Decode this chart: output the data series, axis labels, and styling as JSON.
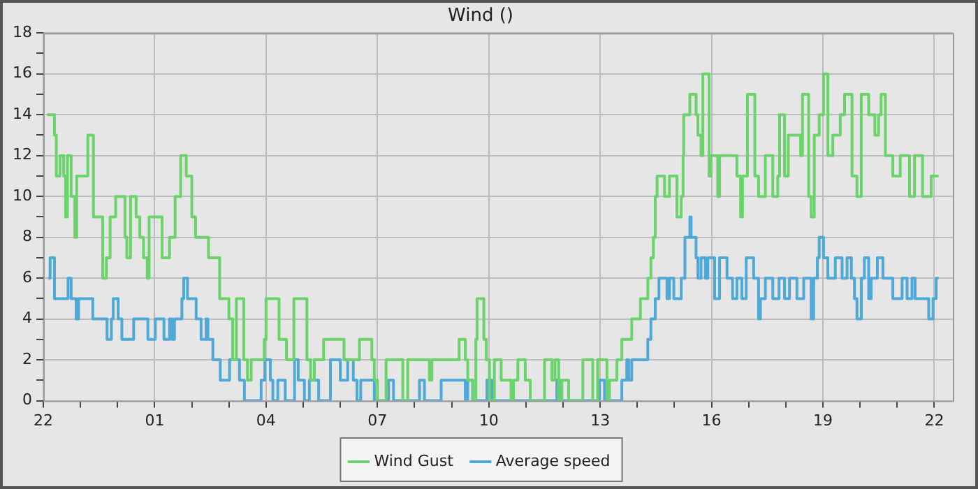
{
  "chart_data": {
    "type": "step",
    "title": "Wind ()",
    "xlim": [
      "--01-01T22:00",
      "--01-02T22:30"
    ],
    "ylim": [
      0,
      18
    ],
    "xticks": [
      {
        "value": "--01-01T22:00",
        "label": "22"
      },
      {
        "value": "--01-01T23:00",
        "label": null
      },
      {
        "value": "--01-02T00:00",
        "label": null
      },
      {
        "value": "--01-02T01:00",
        "label": "01"
      },
      {
        "value": "--01-02T02:00",
        "label": null
      },
      {
        "value": "--01-02T03:00",
        "label": null
      },
      {
        "value": "--01-02T04:00",
        "label": "04"
      },
      {
        "value": "--01-02T05:00",
        "label": null
      },
      {
        "value": "--01-02T06:00",
        "label": null
      },
      {
        "value": "--01-02T07:00",
        "label": "07"
      },
      {
        "value": "--01-02T08:00",
        "label": null
      },
      {
        "value": "--01-02T09:00",
        "label": null
      },
      {
        "value": "--01-02T10:00",
        "label": "10"
      },
      {
        "value": "--01-02T11:00",
        "label": null
      },
      {
        "value": "--01-02T12:00",
        "label": null
      },
      {
        "value": "--01-02T13:00",
        "label": "13"
      },
      {
        "value": "--01-02T14:00",
        "label": null
      },
      {
        "value": "--01-02T15:00",
        "label": null
      },
      {
        "value": "--01-02T16:00",
        "label": "16"
      },
      {
        "value": "--01-02T17:00",
        "label": null
      },
      {
        "value": "--01-02T18:00",
        "label": null
      },
      {
        "value": "--01-02T19:00",
        "label": "19"
      },
      {
        "value": "--01-02T20:00",
        "label": null
      },
      {
        "value": "--01-02T21:00",
        "label": null
      },
      {
        "value": "--01-02T22:00",
        "label": "22"
      }
    ],
    "yticks": [
      0,
      {
        "value": 1,
        "label": null
      },
      2,
      {
        "value": 3,
        "label": null
      },
      4,
      {
        "value": 5,
        "label": null
      },
      6,
      {
        "value": 7,
        "label": null
      },
      8,
      {
        "value": 9,
        "label": null
      },
      10,
      {
        "value": 11,
        "label": null
      },
      12,
      {
        "value": 13,
        "label": null
      },
      14,
      {
        "value": 15,
        "label": null
      },
      16,
      {
        "value": 17,
        "label": null
      },
      18
    ],
    "grid": true,
    "legend": "bottom",
    "series": [
      {
        "name": "Wind Gust",
        "color": "#6ad46a",
        "x": [
          "--01-01T22:06",
          "--01-01T22:18",
          "--01-01T22:21",
          "--01-01T22:27",
          "--01-01T22:33",
          "--01-01T22:36",
          "--01-01T22:39",
          "--01-01T22:45",
          "--01-01T22:51",
          "--01-01T22:54",
          "--01-01T23:12",
          "--01-01T23:21",
          "--01-01T23:36",
          "--01-01T23:42",
          "--01-01T23:48",
          "--01-01T23:57",
          "--01-02T00:12",
          "--01-02T00:15",
          "--01-02T00:21",
          "--01-02T00:30",
          "--01-02T00:36",
          "--01-02T00:42",
          "--01-02T00:48",
          "--01-02T00:51",
          "--01-02T01:00",
          "--01-02T01:12",
          "--01-02T01:24",
          "--01-02T01:33",
          "--01-02T01:42",
          "--01-02T01:51",
          "--01-02T02:00",
          "--01-02T02:06",
          "--01-02T02:27",
          "--01-02T02:45",
          "--01-02T03:00",
          "--01-02T03:06",
          "--01-02T03:12",
          "--01-02T03:24",
          "--01-02T03:30",
          "--01-02T03:36",
          "--01-02T03:57",
          "--01-02T04:00",
          "--01-02T04:21",
          "--01-02T04:33",
          "--01-02T04:45",
          "--01-02T05:06",
          "--01-02T05:12",
          "--01-02T05:18",
          "--01-02T05:33",
          "--01-02T06:06",
          "--01-02T06:31",
          "--01-02T06:51",
          "--01-02T06:55",
          "--01-02T07:00",
          "--01-02T07:14",
          "--01-02T07:41",
          "--01-02T07:49",
          "--01-02T08:24",
          "--01-02T08:28",
          "--01-02T09:12",
          "--01-02T09:22",
          "--01-02T09:26",
          "--01-02T09:34",
          "--01-02T09:39",
          "--01-02T09:41",
          "--01-02T09:52",
          "--01-02T09:56",
          "--01-02T10:01",
          "--01-02T10:09",
          "--01-02T10:20",
          "--01-02T10:36",
          "--01-02T10:40",
          "--01-02T10:47",
          "--01-02T10:59",
          "--01-02T11:07",
          "--01-02T11:30",
          "--01-02T11:42",
          "--01-02T11:47",
          "--01-02T11:53",
          "--01-02T11:58",
          "--01-02T12:09",
          "--01-02T12:32",
          "--01-02T12:48",
          "--01-02T12:56",
          "--01-02T13:11",
          "--01-02T13:15",
          "--01-02T13:27",
          "--01-02T13:35",
          "--01-02T13:51",
          "--01-02T14:05",
          "--01-02T14:17",
          "--01-02T14:22",
          "--01-02T14:26",
          "--01-02T14:29",
          "--01-02T14:32",
          "--01-02T14:44",
          "--01-02T14:52",
          "--01-02T15:04",
          "--01-02T15:11",
          "--01-02T15:14",
          "--01-02T15:15",
          "--01-02T15:25",
          "--01-02T15:35",
          "--01-02T15:38",
          "--01-02T15:43",
          "--01-02T15:46",
          "--01-02T15:56",
          "--01-02T15:59",
          "--01-02T16:10",
          "--01-02T16:13",
          "--01-02T16:41",
          "--01-02T16:47",
          "--01-02T16:50",
          "--01-02T16:58",
          "--01-02T17:10",
          "--01-02T17:16",
          "--01-02T17:27",
          "--01-02T17:39",
          "--01-02T17:47",
          "--01-02T17:50",
          "--01-02T17:58",
          "--01-02T18:04",
          "--01-02T18:24",
          "--01-02T18:27",
          "--01-02T18:37",
          "--01-02T18:41",
          "--01-02T18:46",
          "--01-02T18:54",
          "--01-02T19:01",
          "--01-02T19:08",
          "--01-02T19:16",
          "--01-02T19:28",
          "--01-02T19:35",
          "--01-02T19:47",
          "--01-02T19:55",
          "--01-02T20:02",
          "--01-02T20:14",
          "--01-02T20:24",
          "--01-02T20:30",
          "--01-02T20:34",
          "--01-02T20:41",
          "--01-02T20:53",
          "--01-02T21:05",
          "--01-02T21:20",
          "--01-02T21:28",
          "--01-02T21:41",
          "--01-02T21:55",
          "--01-02T22:07"
        ],
        "values": [
          14,
          13,
          11,
          12,
          11,
          9,
          12,
          10,
          8,
          11,
          13,
          9,
          6,
          7,
          9,
          10,
          8,
          7,
          10,
          9,
          8,
          7,
          6,
          9,
          9,
          7,
          8,
          10,
          12,
          11,
          9,
          8,
          7,
          5,
          4,
          2,
          5,
          2,
          1,
          2,
          3,
          5,
          3,
          2,
          5,
          2,
          1,
          2,
          3,
          2,
          3,
          2,
          1,
          0,
          2,
          0,
          2,
          1,
          2,
          3,
          2,
          1,
          0,
          3,
          5,
          3,
          2,
          0,
          2,
          1,
          0,
          1,
          2,
          1,
          0,
          2,
          1,
          2,
          0,
          1,
          0,
          2,
          0,
          2,
          0,
          1,
          2,
          3,
          4,
          5,
          6,
          7,
          8,
          10,
          11,
          10,
          11,
          9,
          10,
          12,
          14,
          15,
          14,
          13,
          12,
          16,
          11,
          12,
          10,
          12,
          11,
          9,
          11,
          15,
          11,
          10,
          12,
          10,
          11,
          14,
          11,
          13,
          12,
          15,
          10,
          9,
          13,
          14,
          16,
          12,
          13,
          14,
          15,
          11,
          10,
          15,
          14,
          13,
          14,
          15,
          12,
          11,
          12,
          10,
          12,
          10,
          11,
          11
        ]
      },
      {
        "name": "Average speed",
        "color": "#4ea8d8",
        "x": [
          "--01-01T22:08",
          "--01-01T22:11",
          "--01-01T22:18",
          "--01-01T22:40",
          "--01-01T22:45",
          "--01-01T22:53",
          "--01-01T22:57",
          "--01-01T23:20",
          "--01-01T23:43",
          "--01-01T23:50",
          "--01-01T23:53",
          "--01-02T00:01",
          "--01-02T00:07",
          "--01-02T00:22",
          "--01-02T00:26",
          "--01-02T00:49",
          "--01-02T01:01",
          "--01-02T01:15",
          "--01-02T01:24",
          "--01-02T01:28",
          "--01-02T01:32",
          "--01-02T01:44",
          "--01-02T01:47",
          "--01-02T01:53",
          "--01-02T02:07",
          "--01-02T02:15",
          "--01-02T02:23",
          "--01-02T02:26",
          "--01-02T02:34",
          "--01-02T02:46",
          "--01-02T03:01",
          "--01-02T03:17",
          "--01-02T03:25",
          "--01-02T03:52",
          "--01-02T03:58",
          "--01-02T04:07",
          "--01-02T04:11",
          "--01-02T04:19",
          "--01-02T04:31",
          "--01-02T04:46",
          "--01-02T04:52",
          "--01-02T05:02",
          "--01-02T05:10",
          "--01-02T05:25",
          "--01-02T05:44",
          "--01-02T06:00",
          "--01-02T06:12",
          "--01-02T06:21",
          "--01-02T06:27",
          "--01-02T06:33",
          "--01-02T06:55",
          "--01-02T07:18",
          "--01-02T07:26",
          "--01-02T08:08",
          "--01-02T08:16",
          "--01-02T08:43",
          "--01-02T09:22",
          "--01-02T09:26",
          "--01-02T09:34",
          "--01-02T09:57",
          "--01-02T10:05",
          "--01-02T11:50",
          "--01-02T11:55",
          "--01-02T12:59",
          "--01-02T13:07",
          "--01-02T13:35",
          "--01-02T13:43",
          "--01-02T13:46",
          "--01-02T13:51",
          "--01-02T14:17",
          "--01-02T14:22",
          "--01-02T14:29",
          "--01-02T14:35",
          "--01-02T14:48",
          "--01-02T14:52",
          "--01-02T14:59",
          "--01-02T15:11",
          "--01-02T15:17",
          "--01-02T15:25",
          "--01-02T15:27",
          "--01-02T15:35",
          "--01-02T15:38",
          "--01-02T15:43",
          "--01-02T15:50",
          "--01-02T15:54",
          "--01-02T16:05",
          "--01-02T16:13",
          "--01-02T16:25",
          "--01-02T16:34",
          "--01-02T16:41",
          "--01-02T16:49",
          "--01-02T16:56",
          "--01-02T17:08",
          "--01-02T17:16",
          "--01-02T17:19",
          "--01-02T17:27",
          "--01-02T17:39",
          "--01-02T17:49",
          "--01-02T17:58",
          "--01-02T18:06",
          "--01-02T18:18",
          "--01-02T18:29",
          "--01-02T18:41",
          "--01-02T18:45",
          "--01-02T18:51",
          "--01-02T18:54",
          "--01-02T19:01",
          "--01-02T19:08",
          "--01-02T19:20",
          "--01-02T19:31",
          "--01-02T19:39",
          "--01-02T19:46",
          "--01-02T19:51",
          "--01-02T19:55",
          "--01-02T20:02",
          "--01-02T20:07",
          "--01-02T20:14",
          "--01-02T20:18",
          "--01-02T20:28",
          "--01-02T20:37",
          "--01-02T20:53",
          "--01-02T21:08",
          "--01-02T21:16",
          "--01-02T21:24",
          "--01-02T21:29",
          "--01-02T21:51",
          "--01-02T21:58",
          "--01-02T22:03",
          "--01-02T22:07"
        ],
        "values": [
          6,
          7,
          5,
          6,
          5,
          4,
          5,
          4,
          3,
          4,
          5,
          4,
          3,
          3,
          4,
          3,
          4,
          3,
          4,
          3,
          4,
          5,
          6,
          5,
          4,
          3,
          4,
          3,
          2,
          1,
          2,
          1,
          0,
          1,
          2,
          1,
          0,
          1,
          0,
          2,
          1,
          0,
          1,
          0,
          2,
          1,
          2,
          1,
          0,
          1,
          0,
          1,
          0,
          1,
          0,
          1,
          0,
          1,
          0,
          1,
          0,
          1,
          0,
          1,
          0,
          1,
          2,
          1,
          2,
          3,
          4,
          5,
          6,
          5,
          6,
          5,
          6,
          8,
          9,
          8,
          7,
          6,
          7,
          6,
          7,
          5,
          7,
          6,
          5,
          6,
          5,
          7,
          6,
          4,
          5,
          6,
          5,
          6,
          5,
          6,
          5,
          6,
          4,
          6,
          7,
          8,
          7,
          6,
          7,
          6,
          7,
          6,
          5,
          4,
          6,
          7,
          5,
          6,
          7,
          6,
          5,
          6,
          5,
          6,
          5,
          4,
          5,
          6,
          6
        ]
      }
    ]
  }
}
